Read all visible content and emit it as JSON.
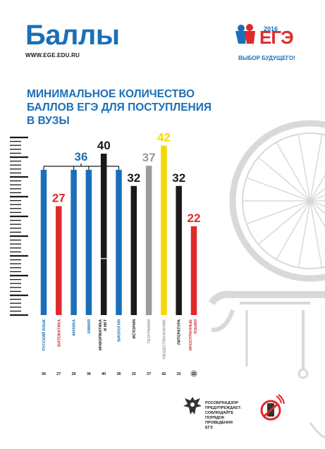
{
  "header": {
    "title": "Баллы",
    "site": "WWW.EGE.EDU.RU",
    "logo_year": "2016",
    "logo_text": "ЕГЭ",
    "logo_tagline": "ВЫБОР БУДУЩЕГО!"
  },
  "heading_lines": [
    "МИНИМАЛЬНОЕ КОЛИЧЕСТВО",
    "БАЛЛОВ ЕГЭ ДЛЯ ПОСТУПЛЕНИЯ",
    "В ВУЗЫ"
  ],
  "footer": {
    "lines": [
      "РОСОБРНАДЗОР",
      "ПРЕДУПРЕЖДАЕТ:",
      "СОБЛЮДАЙТЕ",
      "ПОРЯДОК",
      "ПРОВЕДЕНИЯ",
      "ЕГЭ"
    ]
  },
  "colors": {
    "blue": "#1a6fb8",
    "red": "#e02a2a",
    "black": "#1a1a1a",
    "gray": "#9a9a9a",
    "yellow": "#f5d800"
  },
  "chart_data": {
    "type": "bar",
    "title": "МИНИМАЛЬНОЕ КОЛИЧЕСТВО БАЛЛОВ ЕГЭ ДЛЯ ПОСТУПЛЕНИЯ В ВУЗЫ",
    "ylim": [
      0,
      45
    ],
    "grouped_label": "36",
    "categories": [
      {
        "label": "РУССКИЙ ЯЗЫК",
        "value": 36,
        "color": "#1a6fb8",
        "show_top_label": false,
        "group": true
      },
      {
        "label": "МАТЕМАТИКА",
        "value": 27,
        "color": "#e02a2a",
        "show_top_label": true,
        "group": false
      },
      {
        "label": "ФИЗИКА",
        "value": 36,
        "color": "#1a6fb8",
        "show_top_label": false,
        "group": true
      },
      {
        "label": "ХИМИЯ",
        "value": 36,
        "color": "#1a6fb8",
        "show_top_label": false,
        "group": true
      },
      {
        "label": "ИНФОРМАТИКА И ИКТ",
        "value": 40,
        "color": "#1a1a1a",
        "show_top_label": true,
        "group": false
      },
      {
        "label": "БИОЛОГИЯ",
        "value": 36,
        "color": "#1a6fb8",
        "show_top_label": false,
        "group": true
      },
      {
        "label": "ИСТОРИЯ",
        "value": 32,
        "color": "#1a1a1a",
        "show_top_label": true,
        "group": false
      },
      {
        "label": "ГЕОГРАФИЯ",
        "value": 37,
        "color": "#9a9a9a",
        "show_top_label": true,
        "group": false
      },
      {
        "label": "ОБЩЕСТВОЗНАНИЕ",
        "value": 42,
        "color": "#f5d800",
        "show_top_label": true,
        "group": false
      },
      {
        "label": "ЛИТЕРАТУРА",
        "value": 32,
        "color": "#1a1a1a",
        "show_top_label": true,
        "group": false
      },
      {
        "label": "ИНОСТРАННЫЕ ЯЗЫКИ",
        "value": 22,
        "color": "#e02a2a",
        "show_top_label": true,
        "group": false
      }
    ],
    "bottom_values": [
      "36",
      "27",
      "36",
      "36",
      "40",
      "36",
      "32",
      "37",
      "42",
      "32",
      "22"
    ]
  }
}
